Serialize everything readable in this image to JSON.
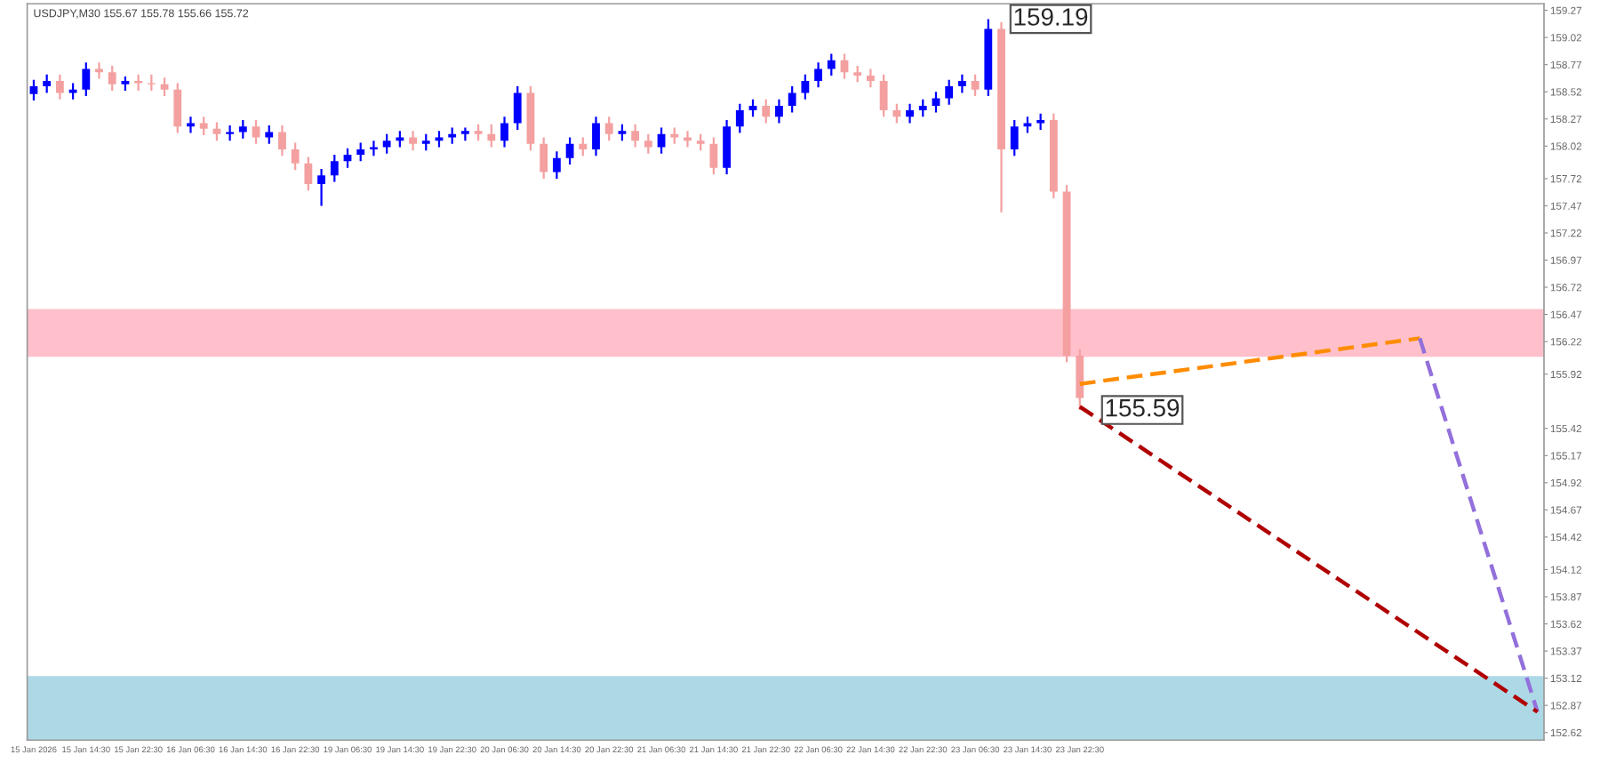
{
  "chart_data": {
    "type": "candlestick",
    "title": "USDJPY,M30 155.67 155.78 155.66 155.72",
    "categories": [
      "15 Jan 2026",
      null,
      null,
      null,
      "15 Jan 14:30",
      null,
      null,
      null,
      "15 Jan 22:30",
      null,
      null,
      null,
      "16 Jan 06:30",
      null,
      null,
      null,
      "16 Jan 14:30",
      null,
      null,
      null,
      "16 Jan 22:30",
      null,
      null,
      null,
      "19 Jan 06:30",
      null,
      null,
      null,
      "19 Jan 14:30",
      null,
      null,
      null,
      "19 Jan 22:30",
      null,
      null,
      null,
      "20 Jan 06:30",
      null,
      null,
      null,
      "20 Jan 14:30",
      null,
      null,
      null,
      "20 Jan 22:30",
      null,
      null,
      null,
      "21 Jan 06:30",
      null,
      null,
      null,
      "21 Jan 14:30",
      null,
      null,
      null,
      "21 Jan 22:30",
      null,
      null,
      null,
      "22 Jan 06:30",
      null,
      null,
      null,
      "22 Jan 14:30",
      null,
      null,
      null,
      "22 Jan 22:30",
      null,
      null,
      null,
      "23 Jan 06:30",
      null,
      null,
      null,
      "23 Jan 14:30",
      null,
      null,
      null,
      "23 Jan 22:30",
      null,
      null,
      null,
      null,
      null,
      null,
      null,
      null,
      null,
      null,
      null,
      null,
      null,
      null,
      null,
      null,
      null,
      null,
      null,
      null,
      null,
      null,
      null,
      null,
      null,
      null,
      null,
      null,
      null,
      null,
      null,
      null,
      null,
      null,
      null
    ],
    "ohlc": [
      [
        158.5,
        158.63,
        158.44,
        158.57
      ],
      [
        158.57,
        158.68,
        158.51,
        158.62
      ],
      [
        158.62,
        158.68,
        158.45,
        158.51
      ],
      [
        158.51,
        158.6,
        158.45,
        158.54
      ],
      [
        158.54,
        158.79,
        158.48,
        158.73
      ],
      [
        158.73,
        158.79,
        158.64,
        158.7
      ],
      [
        158.7,
        158.76,
        158.53,
        158.59
      ],
      [
        158.59,
        158.66,
        158.53,
        158.62
      ],
      [
        158.62,
        158.68,
        158.53,
        158.6
      ],
      [
        158.6,
        158.68,
        158.53,
        158.59
      ],
      [
        158.59,
        158.65,
        158.48,
        158.54
      ],
      [
        158.54,
        158.6,
        158.14,
        158.2
      ],
      [
        158.2,
        158.29,
        158.14,
        158.23
      ],
      [
        158.23,
        158.29,
        158.12,
        158.18
      ],
      [
        158.18,
        158.24,
        158.07,
        158.13
      ],
      [
        158.13,
        158.21,
        158.07,
        158.15
      ],
      [
        158.15,
        158.26,
        158.09,
        158.2
      ],
      [
        158.2,
        158.26,
        158.04,
        158.1
      ],
      [
        158.1,
        158.21,
        158.04,
        158.15
      ],
      [
        158.15,
        158.21,
        157.93,
        157.99
      ],
      [
        157.99,
        158.05,
        157.8,
        157.86
      ],
      [
        157.86,
        157.92,
        157.61,
        157.67
      ],
      [
        157.67,
        157.81,
        157.47,
        157.75
      ],
      [
        157.75,
        157.94,
        157.69,
        157.88
      ],
      [
        157.88,
        158.0,
        157.82,
        157.94
      ],
      [
        157.94,
        158.05,
        157.88,
        157.99
      ],
      [
        157.99,
        158.07,
        157.93,
        158.01
      ],
      [
        158.01,
        158.13,
        157.95,
        158.07
      ],
      [
        158.07,
        158.16,
        158.01,
        158.1
      ],
      [
        158.1,
        158.16,
        157.98,
        158.04
      ],
      [
        158.04,
        158.13,
        157.98,
        158.07
      ],
      [
        158.07,
        158.16,
        158.01,
        158.1
      ],
      [
        158.1,
        158.19,
        158.04,
        158.13
      ],
      [
        158.13,
        158.19,
        158.07,
        158.16
      ],
      [
        158.16,
        158.22,
        158.07,
        158.13
      ],
      [
        158.13,
        158.22,
        158.01,
        158.07
      ],
      [
        158.07,
        158.29,
        158.01,
        158.23
      ],
      [
        158.23,
        158.57,
        158.17,
        158.51
      ],
      [
        158.51,
        158.57,
        157.98,
        158.04
      ],
      [
        158.04,
        158.1,
        157.72,
        157.78
      ],
      [
        157.78,
        157.97,
        157.72,
        157.91
      ],
      [
        157.91,
        158.1,
        157.85,
        158.04
      ],
      [
        158.04,
        158.1,
        157.93,
        157.99
      ],
      [
        157.99,
        158.29,
        157.93,
        158.23
      ],
      [
        158.23,
        158.29,
        158.07,
        158.13
      ],
      [
        158.13,
        158.22,
        158.07,
        158.16
      ],
      [
        158.16,
        158.22,
        158.01,
        158.07
      ],
      [
        158.07,
        158.13,
        157.95,
        158.01
      ],
      [
        158.01,
        158.19,
        157.95,
        158.13
      ],
      [
        158.13,
        158.19,
        158.04,
        158.1
      ],
      [
        158.1,
        158.16,
        158.01,
        158.07
      ],
      [
        158.07,
        158.13,
        157.98,
        158.04
      ],
      [
        158.04,
        158.1,
        157.76,
        157.82
      ],
      [
        157.82,
        158.26,
        157.76,
        158.2
      ],
      [
        158.2,
        158.41,
        158.14,
        158.35
      ],
      [
        158.35,
        158.45,
        158.29,
        158.39
      ],
      [
        158.39,
        158.45,
        158.23,
        158.29
      ],
      [
        158.29,
        158.45,
        158.23,
        158.39
      ],
      [
        158.39,
        158.57,
        158.33,
        158.51
      ],
      [
        158.51,
        158.68,
        158.45,
        158.62
      ],
      [
        158.62,
        158.79,
        158.56,
        158.73
      ],
      [
        158.73,
        158.87,
        158.67,
        158.81
      ],
      [
        158.81,
        158.87,
        158.64,
        158.7
      ],
      [
        158.7,
        158.76,
        158.61,
        158.67
      ],
      [
        158.67,
        158.73,
        158.56,
        158.62
      ],
      [
        158.62,
        158.68,
        158.29,
        158.35
      ],
      [
        158.35,
        158.41,
        158.23,
        158.29
      ],
      [
        158.29,
        158.41,
        158.23,
        158.35
      ],
      [
        158.35,
        158.45,
        158.29,
        158.39
      ],
      [
        158.39,
        158.52,
        158.33,
        158.46
      ],
      [
        158.46,
        158.63,
        158.4,
        158.57
      ],
      [
        158.57,
        158.68,
        158.51,
        158.62
      ],
      [
        158.62,
        158.68,
        158.48,
        158.54
      ],
      [
        158.54,
        159.19,
        158.48,
        159.1
      ],
      [
        159.1,
        159.16,
        157.41,
        157.99
      ],
      [
        157.99,
        158.26,
        157.93,
        158.2
      ],
      [
        158.2,
        158.29,
        158.14,
        158.23
      ],
      [
        158.23,
        158.32,
        158.17,
        158.26
      ],
      [
        158.26,
        158.32,
        157.54,
        157.6
      ],
      [
        157.6,
        157.66,
        156.03,
        156.09
      ],
      [
        156.09,
        156.15,
        155.59,
        155.7
      ],
      null,
      null,
      null,
      null,
      null,
      null,
      null,
      null,
      null,
      null,
      null,
      null,
      null,
      null,
      null,
      null,
      null,
      null,
      null,
      null,
      null,
      null,
      null,
      null,
      null,
      null,
      null,
      null,
      null,
      null,
      null,
      null,
      null,
      null,
      null
    ],
    "colors": [
      "#0000ff",
      "#0000ff",
      "#f4a0a0",
      "#0000ff",
      "#0000ff",
      "#f4a0a0",
      "#f4a0a0",
      "#0000ff",
      "#f4a0a0",
      "#f4a0a0",
      "#f4a0a0",
      "#f4a0a0",
      "#0000ff",
      "#f4a0a0",
      "#f4a0a0",
      "#0000ff",
      "#0000ff",
      "#f4a0a0",
      "#0000ff",
      "#f4a0a0",
      "#f4a0a0",
      "#f4a0a0",
      "#0000ff",
      "#0000ff",
      "#0000ff",
      "#0000ff",
      "#0000ff",
      "#0000ff",
      "#0000ff",
      "#f4a0a0",
      "#0000ff",
      "#0000ff",
      "#0000ff",
      "#0000ff",
      "#f4a0a0",
      "#f4a0a0",
      "#0000ff",
      "#0000ff",
      "#f4a0a0",
      "#f4a0a0",
      "#0000ff",
      "#0000ff",
      "#f4a0a0",
      "#0000ff",
      "#f4a0a0",
      "#0000ff",
      "#f4a0a0",
      "#f4a0a0",
      "#0000ff",
      "#f4a0a0",
      "#f4a0a0",
      "#f4a0a0",
      "#f4a0a0",
      "#0000ff",
      "#0000ff",
      "#0000ff",
      "#f4a0a0",
      "#0000ff",
      "#0000ff",
      "#0000ff",
      "#0000ff",
      "#0000ff",
      "#f4a0a0",
      "#f4a0a0",
      "#f4a0a0",
      "#f4a0a0",
      "#f4a0a0",
      "#0000ff",
      "#0000ff",
      "#0000ff",
      "#0000ff",
      "#0000ff",
      "#f4a0a0",
      "#0000ff",
      "#f4a0a0",
      "#0000ff",
      "#0000ff",
      "#0000ff",
      "#f4a0a0",
      "#f4a0a0",
      "#f4a0a0",
      null,
      null,
      null,
      null,
      null,
      null,
      null,
      null,
      null,
      null,
      null,
      null,
      null,
      null,
      null,
      null,
      null,
      null,
      null,
      null,
      null,
      null,
      null,
      null,
      null,
      null,
      null,
      null,
      null,
      null,
      null,
      null,
      null,
      null,
      null
    ],
    "series": [
      {
        "type": "line",
        "color": "#ff8c00",
        "line_style": "dashed",
        "values": [
          null,
          null,
          null,
          null,
          null,
          null,
          null,
          null,
          null,
          null,
          null,
          null,
          null,
          null,
          null,
          null,
          null,
          null,
          null,
          null,
          null,
          null,
          null,
          null,
          null,
          null,
          null,
          null,
          null,
          null,
          null,
          null,
          null,
          null,
          null,
          null,
          null,
          null,
          null,
          null,
          null,
          null,
          null,
          null,
          null,
          null,
          null,
          null,
          null,
          null,
          null,
          null,
          null,
          null,
          null,
          null,
          null,
          null,
          null,
          null,
          null,
          null,
          null,
          null,
          null,
          null,
          null,
          null,
          null,
          null,
          null,
          null,
          null,
          null,
          null,
          null,
          null,
          null,
          null,
          null,
          155.83,
          null,
          null,
          null,
          null,
          null,
          null,
          null,
          null,
          null,
          null,
          null,
          null,
          null,
          null,
          null,
          null,
          null,
          null,
          null,
          null,
          null,
          null,
          null,
          null,
          null,
          156.25,
          null,
          null,
          null,
          null,
          null,
          null,
          null,
          null,
          null
        ]
      },
      {
        "type": "line",
        "color": "#9370db",
        "line_style": "dashed",
        "values": [
          null,
          null,
          null,
          null,
          null,
          null,
          null,
          null,
          null,
          null,
          null,
          null,
          null,
          null,
          null,
          null,
          null,
          null,
          null,
          null,
          null,
          null,
          null,
          null,
          null,
          null,
          null,
          null,
          null,
          null,
          null,
          null,
          null,
          null,
          null,
          null,
          null,
          null,
          null,
          null,
          null,
          null,
          null,
          null,
          null,
          null,
          null,
          null,
          null,
          null,
          null,
          null,
          null,
          null,
          null,
          null,
          null,
          null,
          null,
          null,
          null,
          null,
          null,
          null,
          null,
          null,
          null,
          null,
          null,
          null,
          null,
          null,
          null,
          null,
          null,
          null,
          null,
          null,
          null,
          null,
          null,
          null,
          null,
          null,
          null,
          null,
          null,
          null,
          null,
          null,
          null,
          null,
          null,
          null,
          null,
          null,
          null,
          null,
          null,
          null,
          null,
          null,
          null,
          null,
          null,
          null,
          156.25,
          null,
          null,
          null,
          null,
          null,
          null,
          null,
          null,
          152.81
        ]
      },
      {
        "type": "line",
        "color": "#b00000",
        "line_style": "dashed",
        "values": [
          null,
          null,
          null,
          null,
          null,
          null,
          null,
          null,
          null,
          null,
          null,
          null,
          null,
          null,
          null,
          null,
          null,
          null,
          null,
          null,
          null,
          null,
          null,
          null,
          null,
          null,
          null,
          null,
          null,
          null,
          null,
          null,
          null,
          null,
          null,
          null,
          null,
          null,
          null,
          null,
          null,
          null,
          null,
          null,
          null,
          null,
          null,
          null,
          null,
          null,
          null,
          null,
          null,
          null,
          null,
          null,
          null,
          null,
          null,
          null,
          null,
          null,
          null,
          null,
          null,
          null,
          null,
          null,
          null,
          null,
          null,
          null,
          null,
          null,
          null,
          null,
          null,
          null,
          null,
          null,
          155.62,
          null,
          null,
          null,
          null,
          null,
          null,
          null,
          null,
          null,
          null,
          null,
          null,
          null,
          null,
          null,
          null,
          null,
          null,
          null,
          null,
          null,
          null,
          null,
          null,
          null,
          null,
          null,
          null,
          null,
          null,
          null,
          null,
          null,
          null,
          152.81
        ]
      }
    ],
    "bands": [
      {
        "axis": "y",
        "from": 156.08,
        "to": 156.52,
        "color": "#ffc0cb"
      },
      {
        "axis": "y",
        "from": 152.55,
        "to": 153.14,
        "color": "#add8e6"
      }
    ],
    "annotations": [
      "159.19",
      "155.59"
    ],
    "ylim": [
      152.55,
      159.33
    ],
    "yticks": [
      159.27,
      159.02,
      158.77,
      158.52,
      158.27,
      158.02,
      157.72,
      157.47,
      157.22,
      156.97,
      156.72,
      156.47,
      156.22,
      155.92,
      155.42,
      155.17,
      154.92,
      154.67,
      154.42,
      154.12,
      153.87,
      153.62,
      153.37,
      153.12,
      152.87,
      152.62
    ],
    "grid": false
  }
}
